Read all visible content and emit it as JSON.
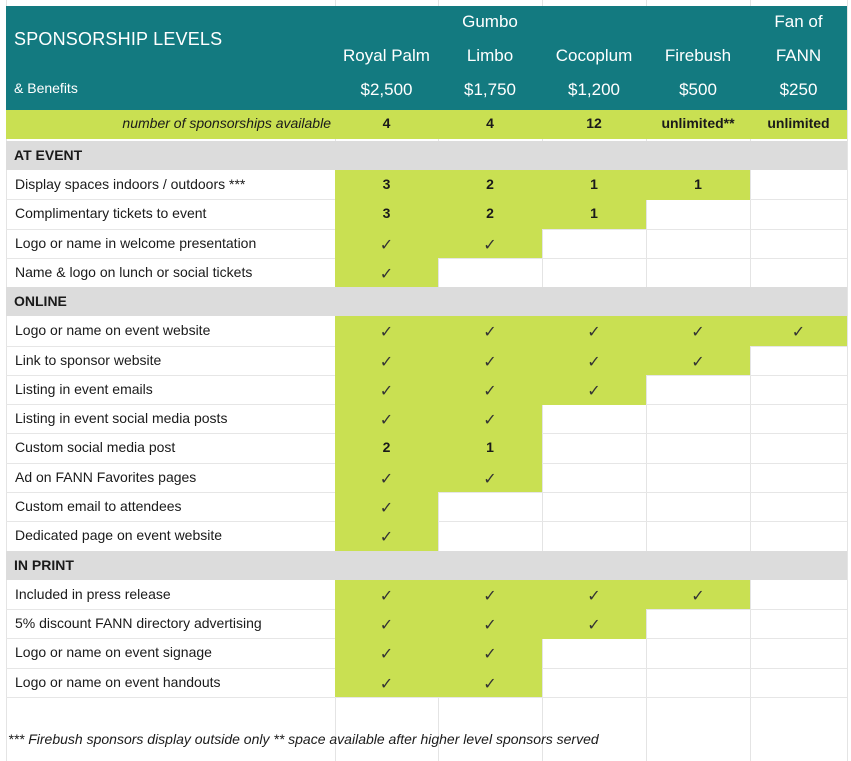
{
  "title": "SPONSORSHIP LEVELS",
  "subtitle": "& Benefits",
  "levels": [
    {
      "line1": "",
      "name": "Royal Palm",
      "price": "$2,500",
      "available": "4"
    },
    {
      "line1": "Gumbo",
      "name": "Limbo",
      "price": "$1,750",
      "available": "4"
    },
    {
      "line1": "",
      "name": "Cocoplum",
      "price": "$1,200",
      "available": "12"
    },
    {
      "line1": "",
      "name": "Firebush",
      "price": "$500",
      "available": "unlimited**"
    },
    {
      "line1": "Fan of",
      "name": "FANN",
      "price": "$250",
      "available": "unlimited"
    }
  ],
  "available_label": "number of sponsorships available",
  "check_glyph": "✓",
  "sections": [
    {
      "name": "AT EVENT",
      "rows": [
        {
          "label": "Display spaces indoors / outdoors ***",
          "values": [
            "3",
            "2",
            "1",
            "1",
            ""
          ]
        },
        {
          "label": "Complimentary tickets to event",
          "values": [
            "3",
            "2",
            "1",
            "",
            ""
          ]
        },
        {
          "label": "Logo or name in welcome presentation",
          "values": [
            "✓",
            "✓",
            "",
            "",
            ""
          ]
        },
        {
          "label": "Name & logo on lunch or social tickets",
          "values": [
            "✓",
            "",
            "",
            "",
            ""
          ]
        }
      ]
    },
    {
      "name": "ONLINE",
      "rows": [
        {
          "label": "Logo or name on event website",
          "values": [
            "✓",
            "✓",
            "✓",
            "✓",
            "✓"
          ]
        },
        {
          "label": "Link to sponsor website",
          "values": [
            "✓",
            "✓",
            "✓",
            "✓",
            ""
          ]
        },
        {
          "label": "Listing in event emails",
          "values": [
            "✓",
            "✓",
            "✓",
            "",
            ""
          ]
        },
        {
          "label": "Listing in event social media posts",
          "values": [
            "✓",
            "✓",
            "",
            "",
            ""
          ]
        },
        {
          "label": "Custom social media post",
          "values": [
            "2",
            "1",
            "",
            "",
            ""
          ]
        },
        {
          "label": "Ad on FANN Favorites pages",
          "values": [
            "✓",
            "✓",
            "",
            "",
            ""
          ]
        },
        {
          "label": "Custom email to attendees",
          "values": [
            "✓",
            "",
            "",
            "",
            ""
          ]
        },
        {
          "label": "Dedicated page on event website",
          "values": [
            "✓",
            "",
            "",
            "",
            ""
          ]
        }
      ]
    },
    {
      "name": "IN PRINT",
      "rows": [
        {
          "label": "Included in press release",
          "values": [
            "✓",
            "✓",
            "✓",
            "✓",
            ""
          ]
        },
        {
          "label": "5% discount FANN directory advertising",
          "values": [
            "✓",
            "✓",
            "✓",
            "",
            ""
          ]
        },
        {
          "label": "Logo or name on event signage",
          "values": [
            "✓",
            "✓",
            "",
            "",
            ""
          ]
        },
        {
          "label": "Logo or name on event handouts",
          "values": [
            "✓",
            "✓",
            "",
            "",
            ""
          ]
        }
      ]
    }
  ],
  "footnote": "*** Firebush sponsors display outside only ** space available after higher level sponsors served",
  "colors": {
    "header": "#137a80",
    "accent": "#c9e052",
    "section": "#dcdcdc"
  }
}
